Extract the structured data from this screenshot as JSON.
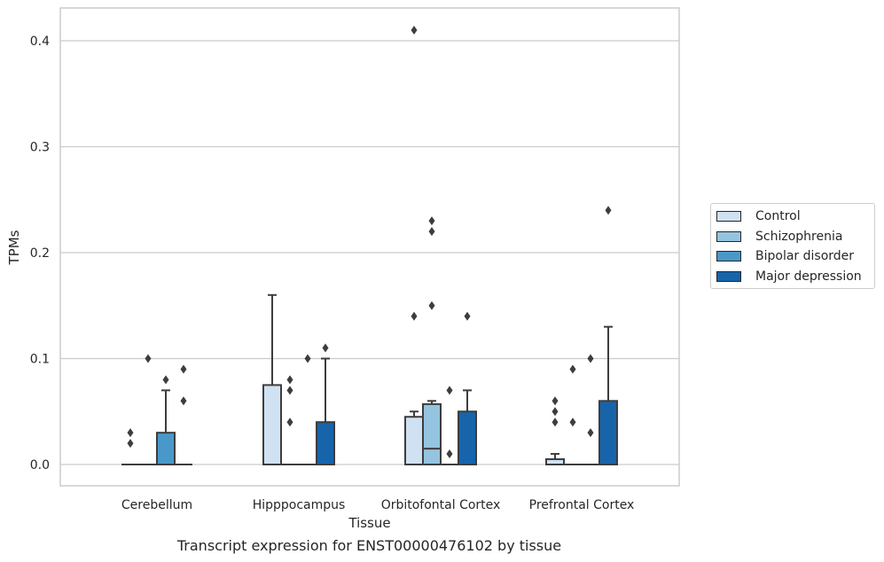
{
  "chart_data": {
    "type": "box",
    "title": "",
    "xlabel": "Tissue",
    "ylabel": "TPMs",
    "caption": "Transcript expression for ENST00000476102 by tissue",
    "categories": [
      "Cerebellum",
      "Hipppocampus",
      "Orbitofontal Cortex",
      "Prefrontal Cortex"
    ],
    "ylim": [
      -0.02,
      0.43
    ],
    "yticks": [
      "0.0",
      "0.1",
      "0.2",
      "0.3",
      "0.4"
    ],
    "ytick_values": [
      0,
      0.1,
      0.2,
      0.3,
      0.4
    ],
    "grid": true,
    "legend_position": "right",
    "series": [
      {
        "name": "Control",
        "color": "#d0e1f2",
        "boxes": [
          {
            "q1": 0,
            "median": 0,
            "q3": 0,
            "whisker_low": 0,
            "whisker_high": 0,
            "outliers": [
              0.02,
              0.03
            ]
          },
          {
            "q1": 0,
            "median": 0,
            "q3": 0.075,
            "whisker_low": 0,
            "whisker_high": 0.16,
            "outliers": []
          },
          {
            "q1": 0,
            "median": 0,
            "q3": 0.045,
            "whisker_low": 0,
            "whisker_high": 0.05,
            "outliers": [
              0.14,
              0.41
            ]
          },
          {
            "q1": 0,
            "median": 0,
            "q3": 0.005,
            "whisker_low": 0,
            "whisker_high": 0.01,
            "outliers": [
              0.04,
              0.05,
              0.06
            ]
          }
        ]
      },
      {
        "name": "Schizophrenia",
        "color": "#94c4df",
        "boxes": [
          {
            "q1": 0,
            "median": 0,
            "q3": 0,
            "whisker_low": 0,
            "whisker_high": 0,
            "outliers": [
              0.1
            ]
          },
          {
            "q1": 0,
            "median": 0,
            "q3": 0,
            "whisker_low": 0,
            "whisker_high": 0,
            "outliers": [
              0.04,
              0.07,
              0.08
            ]
          },
          {
            "q1": 0,
            "median": 0.015,
            "q3": 0.057,
            "whisker_low": 0,
            "whisker_high": 0.06,
            "outliers": [
              0.15,
              0.22,
              0.23
            ]
          },
          {
            "q1": 0,
            "median": 0,
            "q3": 0,
            "whisker_low": 0,
            "whisker_high": 0,
            "outliers": [
              0.04,
              0.09
            ]
          }
        ]
      },
      {
        "name": "Bipolar disorder",
        "color": "#4a98c9",
        "boxes": [
          {
            "q1": 0,
            "median": 0,
            "q3": 0.03,
            "whisker_low": 0,
            "whisker_high": 0.07,
            "outliers": [
              0.08
            ]
          },
          {
            "q1": 0,
            "median": 0,
            "q3": 0,
            "whisker_low": 0,
            "whisker_high": 0,
            "outliers": [
              0.1
            ]
          },
          {
            "q1": 0,
            "median": 0,
            "q3": 0,
            "whisker_low": 0,
            "whisker_high": 0,
            "outliers": [
              0.01,
              0.07
            ]
          },
          {
            "q1": 0,
            "median": 0,
            "q3": 0,
            "whisker_low": 0,
            "whisker_high": 0,
            "outliers": [
              0.03,
              0.1
            ]
          }
        ]
      },
      {
        "name": "Major depression",
        "color": "#1764ab",
        "boxes": [
          {
            "q1": 0,
            "median": 0,
            "q3": 0,
            "whisker_low": 0,
            "whisker_high": 0,
            "outliers": [
              0.06,
              0.09
            ]
          },
          {
            "q1": 0,
            "median": 0,
            "q3": 0.04,
            "whisker_low": 0,
            "whisker_high": 0.1,
            "outliers": [
              0.11
            ]
          },
          {
            "q1": 0,
            "median": 0,
            "q3": 0.05,
            "whisker_low": 0,
            "whisker_high": 0.07,
            "outliers": [
              0.14
            ]
          },
          {
            "q1": 0,
            "median": 0,
            "q3": 0.06,
            "whisker_low": 0,
            "whisker_high": 0.13,
            "outliers": [
              0.24
            ]
          }
        ]
      }
    ]
  }
}
